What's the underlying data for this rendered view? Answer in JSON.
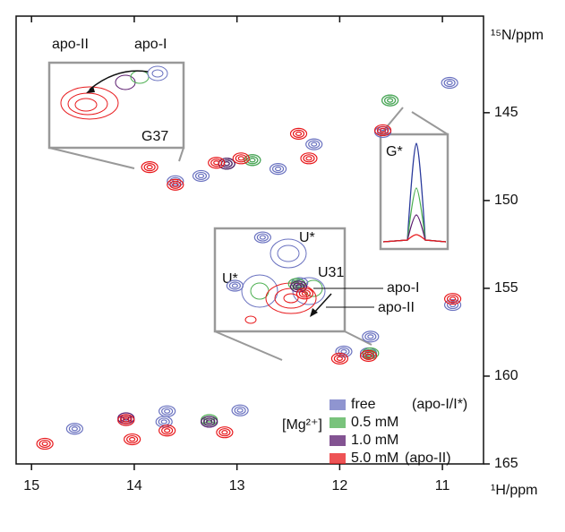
{
  "chart_data": {
    "type": "contour",
    "y_label": "¹⁵N/ppm",
    "x_label": "¹H/ppm",
    "xlim": [
      15.15,
      10.6
    ],
    "ylim": [
      139.5,
      165
    ],
    "xticks": [
      15,
      14,
      13,
      12,
      11
    ],
    "yticks": [
      145,
      150,
      155,
      160,
      165
    ],
    "legend_title": "[Mg²⁺]",
    "series": [
      {
        "name": "free",
        "note": "(apo-I/I*)",
        "color": "#6a72c0",
        "x": [
          10.93,
          11.51,
          13.6,
          13.35,
          13.1,
          12.85,
          12.6,
          12.75,
          13.02,
          12.39,
          10.9,
          11.96,
          11.7,
          11.72,
          14.58,
          14.08,
          13.71,
          13.68,
          13.27,
          12.97,
          12.25,
          11.58
        ],
        "y": [
          143.3,
          144.3,
          148.9,
          148.6,
          147.9,
          147.7,
          148.2,
          152.1,
          154.85,
          154.7,
          155.95,
          158.6,
          157.75,
          158.7,
          163.0,
          162.5,
          162.6,
          162.0,
          162.6,
          161.95,
          146.8,
          146.1
        ]
      },
      {
        "name": "0.5 mM",
        "color": "#4caf50",
        "x": [
          11.51,
          13.1,
          12.85,
          12.42,
          13.27,
          11.7
        ],
        "y": [
          144.3,
          147.9,
          147.7,
          154.75,
          162.5,
          158.7
        ]
      },
      {
        "name": "1.0 mM",
        "color": "#5a1a6e",
        "x": [
          13.1,
          12.4,
          13.27,
          14.08
        ],
        "y": [
          147.9,
          154.9,
          162.6,
          162.4
        ]
      },
      {
        "name": "5.0 mM",
        "note": "(apo-II)",
        "color": "#e8191c",
        "x": [
          14.87,
          14.08,
          14.02,
          13.68,
          13.12,
          12.34,
          12.0,
          12.3,
          12.4,
          13.85,
          13.6,
          13.2,
          12.96,
          10.9,
          11.72,
          11.58
        ],
        "y": [
          163.85,
          162.5,
          163.6,
          163.1,
          163.2,
          155.3,
          159.0,
          147.6,
          146.2,
          148.1,
          149.1,
          147.85,
          147.6,
          155.6,
          158.85,
          146.0
        ]
      }
    ],
    "annotations": [
      "apo-II",
      "apo-I",
      "G37",
      "G*",
      "U*",
      "U*",
      "U31",
      "apo-I",
      "apo-II"
    ]
  }
}
